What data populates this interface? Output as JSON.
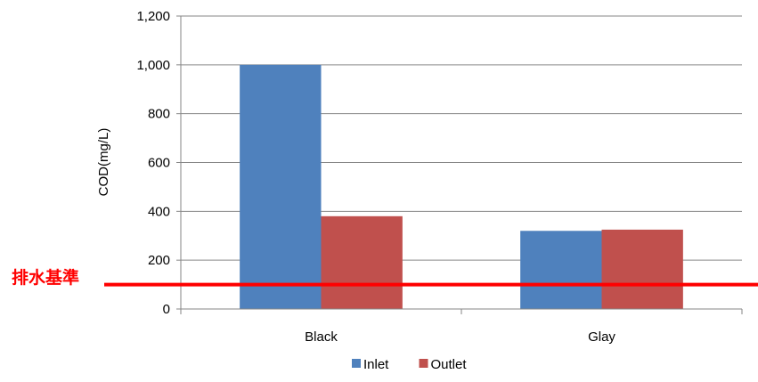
{
  "chart_data": {
    "type": "bar",
    "title": "",
    "xlabel": "",
    "ylabel": "COD(mg/L)",
    "categories": [
      "Black",
      "Glay"
    ],
    "series": [
      {
        "name": "Inlet",
        "values": [
          1000,
          320
        ],
        "color": "#4f81bd"
      },
      {
        "name": "Outlet",
        "values": [
          380,
          325
        ],
        "color": "#c0504d"
      }
    ],
    "ylim": [
      0,
      1200
    ],
    "yticks": [
      0,
      200,
      400,
      600,
      800,
      1000,
      1200
    ],
    "ytick_labels": [
      "0",
      "200",
      "400",
      "600",
      "800",
      "1,000",
      "1,200"
    ],
    "grid": true,
    "legend_position": "bottom",
    "reference_line": {
      "label": "排水基準",
      "value": 100,
      "color": "#ff0000"
    }
  }
}
